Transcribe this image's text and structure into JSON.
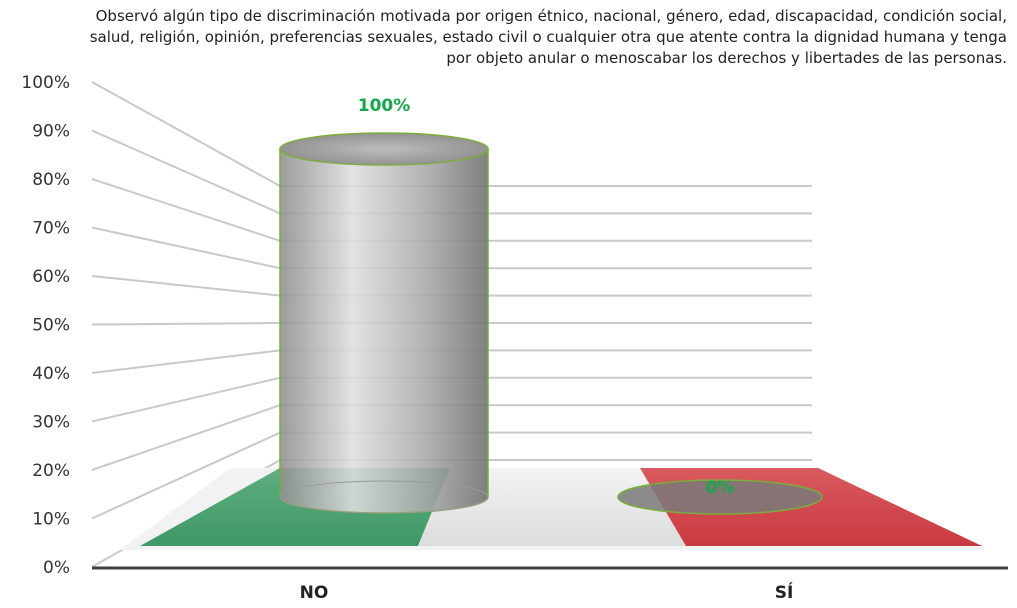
{
  "chart_data": {
    "type": "bar",
    "title": "Observó algún tipo de discriminación motivada por origen étnico, nacional, género, edad, discapacidad, condición social, salud, religión, opinión, preferencias sexuales, estado civil o cualquier otra que atente contra la dignidad humana y tenga por objeto anular o menoscabar los derechos y libertades de las personas.",
    "categories": [
      "NO",
      "SÍ"
    ],
    "values": [
      100,
      0
    ],
    "data_labels": [
      "100%",
      "0%"
    ],
    "y_ticks": [
      "0%",
      "10%",
      "20%",
      "30%",
      "40%",
      "50%",
      "60%",
      "70%",
      "80%",
      "90%",
      "100%"
    ],
    "ylim": [
      0,
      100
    ],
    "grid": true,
    "style": "3d-cylinder",
    "colors": {
      "label_color": "#14a84a",
      "floor_left": "#3f9b66",
      "floor_middle": "#e6e6e6",
      "floor_right": "#d1343b",
      "cylinder_outline": "#7cad3a",
      "grid_line": "#c9c9c9"
    }
  }
}
